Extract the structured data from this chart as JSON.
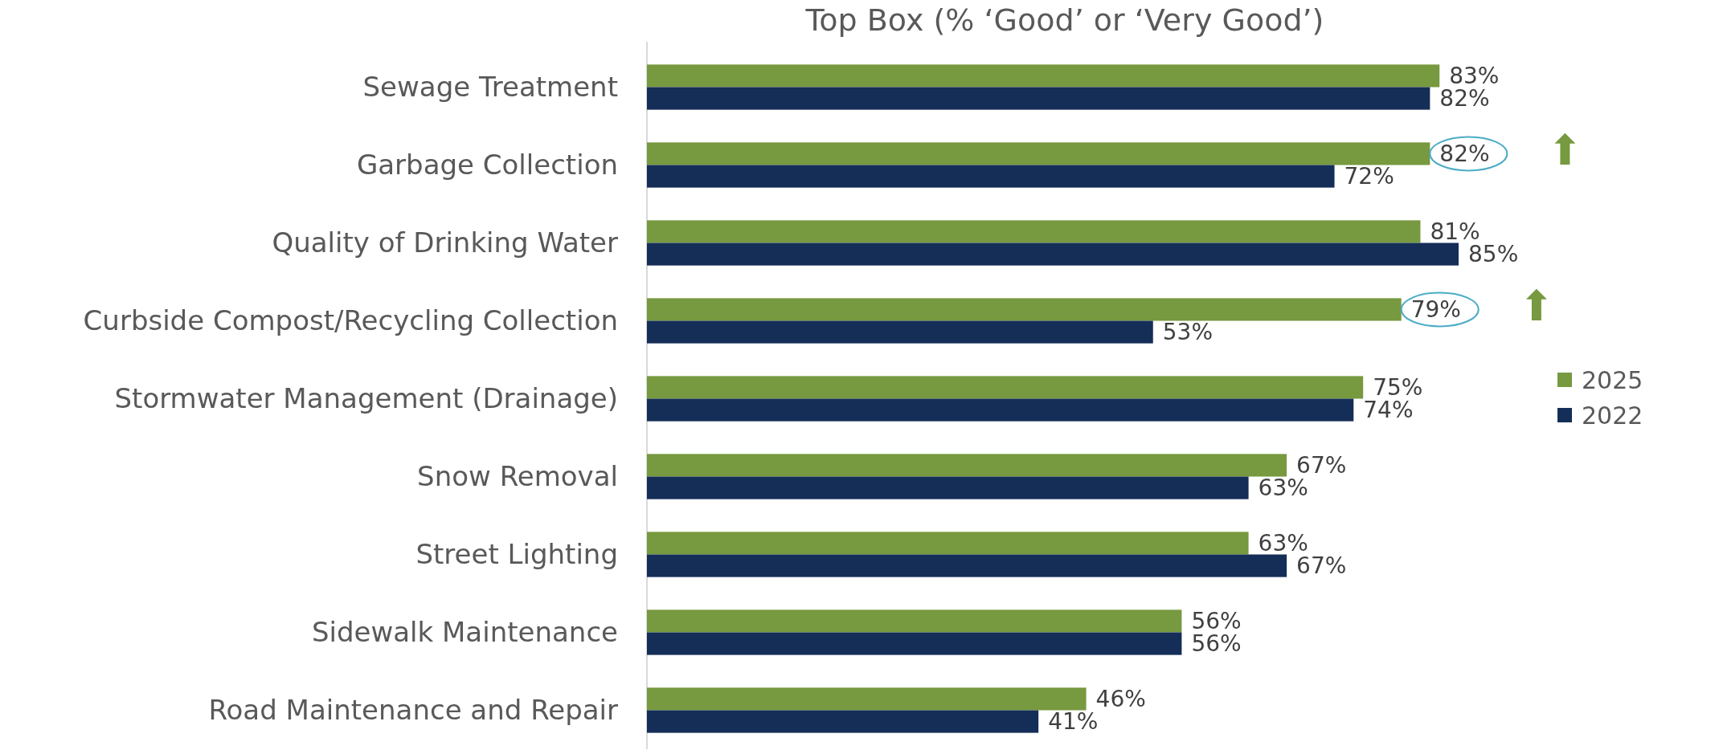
{
  "chart_data": {
    "type": "bar",
    "orientation": "horizontal",
    "title": "Top Box (% ‘Good’ or ‘Very Good’)",
    "categories": [
      "Sewage Treatment",
      "Garbage Collection",
      "Quality of Drinking Water",
      "Curbside Compost/Recycling Collection",
      "Stormwater Management (Drainage)",
      "Snow Removal",
      "Street Lighting",
      "Sidewalk Maintenance",
      "Road Maintenance and Repair"
    ],
    "series": [
      {
        "name": "2025",
        "color": "#77993f",
        "values": [
          83,
          82,
          81,
          79,
          75,
          67,
          63,
          56,
          46
        ],
        "value_labels": [
          "83%",
          "82%",
          "81%",
          "79%",
          "75%",
          "67%",
          "63%",
          "56%",
          "46%"
        ]
      },
      {
        "name": "2022",
        "color": "#152e58",
        "values": [
          82,
          72,
          85,
          53,
          74,
          63,
          67,
          56,
          41
        ],
        "value_labels": [
          "82%",
          "72%",
          "85%",
          "53%",
          "74%",
          "63%",
          "67%",
          "56%",
          "41%"
        ]
      }
    ],
    "annotations": [
      {
        "text": "⬆",
        "x": 82,
        "y": "Garbage Collection"
      },
      {
        "text": "⬆",
        "x": 79,
        "y": "Curbside Compost/Recycling Collection"
      }
    ],
    "legend": "right"
  }
}
